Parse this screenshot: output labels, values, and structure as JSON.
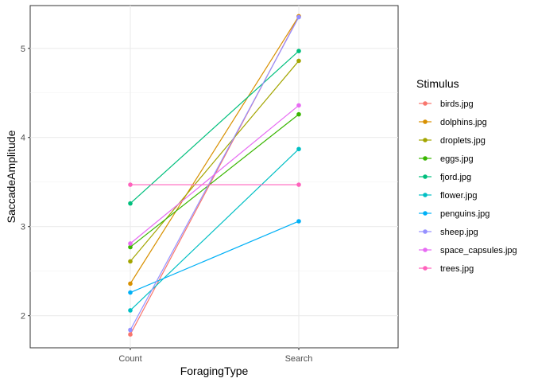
{
  "chart_data": {
    "type": "line",
    "xlabel": "ForagingType",
    "ylabel": "SaccadeAmplitude",
    "categories": [
      "Count",
      "Search"
    ],
    "ylim": [
      1.64,
      5.48
    ],
    "y_ticks": [
      "2",
      "3",
      "4",
      "5"
    ],
    "grid": true,
    "legend": {
      "title": "Stimulus",
      "position": "right"
    },
    "series": [
      {
        "name": "birds.jpg",
        "color": "#F8766D",
        "values": [
          1.79,
          5.36
        ]
      },
      {
        "name": "dolphins.jpg",
        "color": "#D89000",
        "values": [
          2.36,
          5.36
        ]
      },
      {
        "name": "droplets.jpg",
        "color": "#A3A500",
        "values": [
          2.61,
          4.86
        ]
      },
      {
        "name": "eggs.jpg",
        "color": "#39B600",
        "values": [
          2.77,
          4.26
        ]
      },
      {
        "name": "fjord.jpg",
        "color": "#00BF7D",
        "values": [
          3.26,
          4.97
        ]
      },
      {
        "name": "flower.jpg",
        "color": "#00BFC4",
        "values": [
          2.06,
          3.87
        ]
      },
      {
        "name": "penguins.jpg",
        "color": "#00B0F6",
        "values": [
          2.26,
          3.06
        ]
      },
      {
        "name": "sheep.jpg",
        "color": "#9590FF",
        "values": [
          1.84,
          5.35
        ]
      },
      {
        "name": "space_capsules.jpg",
        "color": "#E76BF3",
        "values": [
          2.81,
          4.36
        ]
      },
      {
        "name": "trees.jpg",
        "color": "#FF62BC",
        "values": [
          3.47,
          3.47
        ]
      }
    ]
  }
}
